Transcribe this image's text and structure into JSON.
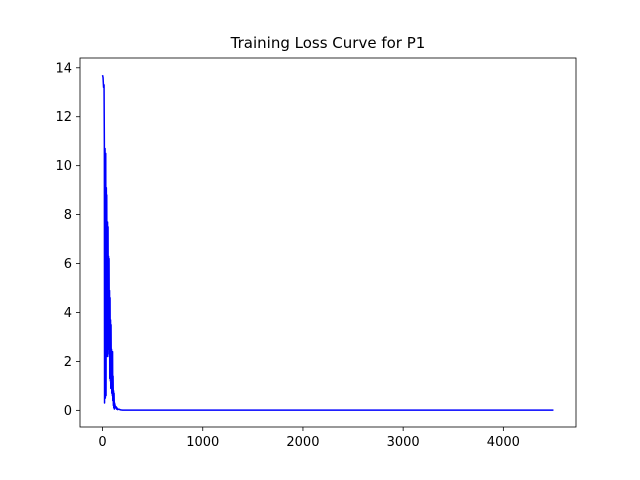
{
  "chart_data": {
    "type": "line",
    "title": "Training Loss Curve for P1",
    "xlabel": "",
    "ylabel": "",
    "xlim": [
      -225,
      4725
    ],
    "ylim": [
      -0.68,
      14.4
    ],
    "xticks": [
      0,
      1000,
      2000,
      3000,
      4000
    ],
    "yticks": [
      0,
      2,
      4,
      6,
      8,
      10,
      12,
      14
    ],
    "xtick_labels": [
      "0",
      "1000",
      "2000",
      "3000",
      "4000"
    ],
    "ytick_labels": [
      "0",
      "2",
      "4",
      "6",
      "8",
      "10",
      "12",
      "14"
    ],
    "grid": false,
    "legend": "none",
    "series": [
      {
        "color": "#0000ff",
        "x": [
          0,
          5,
          10,
          15,
          18,
          20,
          22,
          25,
          28,
          30,
          32,
          35,
          38,
          40,
          42,
          45,
          48,
          50,
          52,
          55,
          58,
          60,
          62,
          65,
          68,
          70,
          72,
          75,
          78,
          80,
          82,
          85,
          88,
          90,
          92,
          95,
          98,
          100,
          102,
          105,
          108,
          110,
          112,
          115,
          118,
          120,
          125,
          130,
          135,
          140,
          145,
          150,
          160,
          180,
          200,
          250,
          300,
          400,
          500,
          700,
          1000,
          1500,
          2000,
          2500,
          3000,
          3500,
          4000,
          4500
        ],
        "y": [
          13.7,
          13.6,
          13.2,
          13.3,
          11.0,
          0.3,
          10.4,
          10.7,
          0.5,
          7.0,
          10.5,
          0.6,
          9.1,
          2.2,
          8.8,
          4.5,
          3.0,
          7.7,
          2.2,
          7.5,
          2.5,
          6.3,
          2.6,
          6.2,
          2.3,
          4.9,
          1.3,
          4.6,
          1.2,
          3.7,
          0.9,
          3.5,
          1.0,
          2.5,
          0.7,
          2.4,
          0.6,
          2.4,
          0.4,
          1.4,
          0.2,
          0.8,
          0.1,
          0.7,
          0.05,
          0.3,
          0.2,
          0.1,
          0.15,
          0.05,
          0.1,
          0.03,
          0.05,
          0.02,
          0.01,
          0.01,
          0.01,
          0.01,
          0.01,
          0.01,
          0.01,
          0.01,
          0.01,
          0.01,
          0.01,
          0.01,
          0.01,
          0.01
        ]
      }
    ]
  }
}
